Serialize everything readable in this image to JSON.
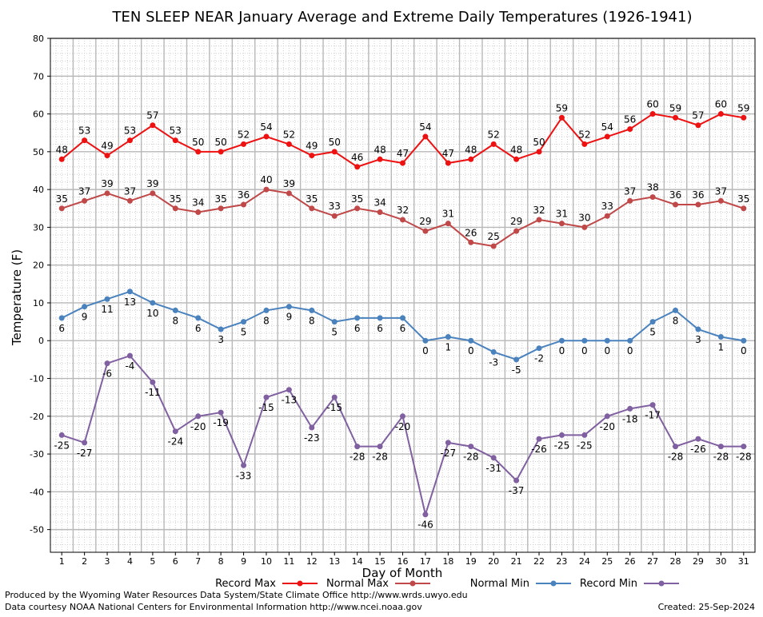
{
  "chart_data": {
    "type": "line",
    "title": "TEN SLEEP NEAR January Average and Extreme Daily Temperatures (1926-1941)",
    "xlabel": "Day of Month",
    "ylabel": "Temperature (F)",
    "x": [
      1,
      2,
      3,
      4,
      5,
      6,
      7,
      8,
      9,
      10,
      11,
      12,
      13,
      14,
      15,
      16,
      17,
      18,
      19,
      20,
      21,
      22,
      23,
      24,
      25,
      26,
      27,
      28,
      29,
      30,
      31
    ],
    "xlim": [
      0.5,
      31.5
    ],
    "ylim": [
      -56,
      80
    ],
    "yticks": [
      -50,
      -40,
      -30,
      -20,
      -10,
      0,
      10,
      20,
      30,
      40,
      50,
      60,
      70,
      80
    ],
    "grid": true,
    "legend_position": "bottom",
    "series": [
      {
        "name": "Record Max",
        "color": "#ee1111",
        "values": [
          48,
          53,
          49,
          53,
          57,
          53,
          50,
          50,
          52,
          54,
          52,
          49,
          50,
          46,
          48,
          47,
          54,
          47,
          48,
          52,
          48,
          50,
          59,
          52,
          54,
          56,
          60,
          59,
          57,
          60,
          59
        ]
      },
      {
        "name": "Normal Max",
        "color": "#c04848",
        "values": [
          35,
          37,
          39,
          37,
          39,
          35,
          34,
          35,
          36,
          40,
          39,
          35,
          33,
          35,
          34,
          32,
          29,
          31,
          26,
          25,
          29,
          32,
          31,
          30,
          33,
          37,
          38,
          36,
          36,
          37,
          35
        ]
      },
      {
        "name": "Normal Min",
        "color": "#4a82be",
        "values": [
          6,
          9,
          11,
          13,
          10,
          8,
          6,
          3,
          5,
          8,
          9,
          8,
          5,
          6,
          6,
          6,
          0,
          1,
          0,
          -3,
          -5,
          -2,
          0,
          0,
          0,
          0,
          5,
          8,
          3,
          1,
          0
        ]
      },
      {
        "name": "Record Min",
        "color": "#8060a0",
        "values": [
          -25,
          -27,
          -6,
          -4,
          -11,
          -24,
          -20,
          -19,
          -33,
          -15,
          -13,
          -23,
          -15,
          -28,
          -28,
          -20,
          -46,
          -27,
          -28,
          -31,
          -37,
          -26,
          -25,
          -25,
          -20,
          -18,
          -17,
          -28,
          -26,
          -28,
          -28
        ]
      }
    ]
  },
  "footer": {
    "line1": "Produced by the Wyoming Water Resources Data System/State Climate Office http://www.wrds.uwyo.edu",
    "line2": "Data courtesy NOAA National Centers for Environmental Information http://www.ncei.noaa.gov",
    "created": "Created:  25-Sep-2024"
  }
}
